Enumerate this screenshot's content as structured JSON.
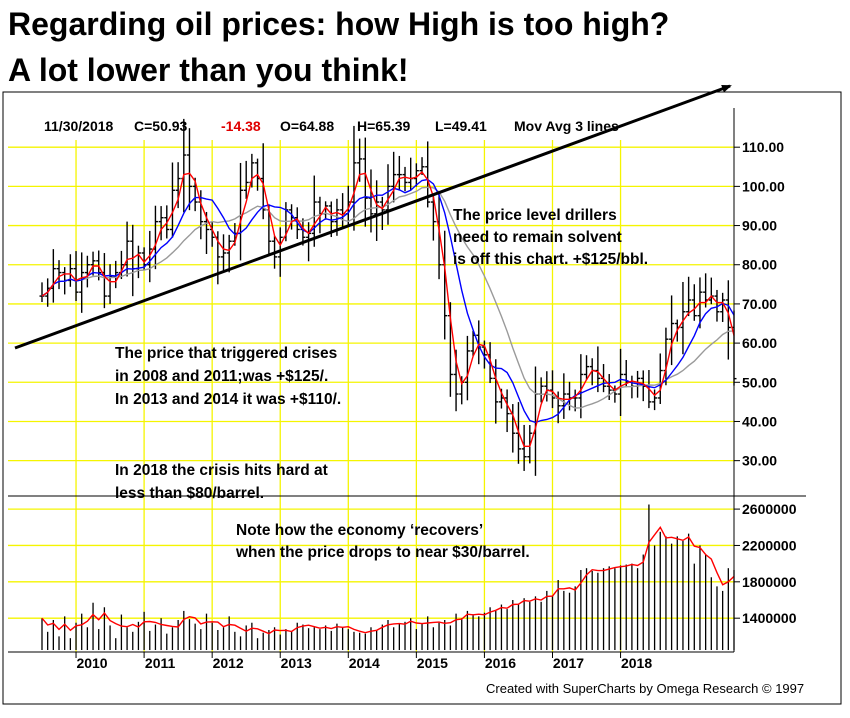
{
  "title": {
    "line1": "Regarding oil prices: how High is too high?",
    "line2": "A lot lower than you think!"
  },
  "header": {
    "date": "11/30/2018",
    "close": "C=50.93",
    "change": "-14.38",
    "open": "O=64.88",
    "high": "H=65.39",
    "low": "L=49.41",
    "indicator": "Mov Avg 3 lines"
  },
  "annotations": {
    "drillers": [
      "The price level drillers",
      "need to remain solvent",
      "is off this chart. +$125/bbl."
    ],
    "crises": [
      "The price that triggered crises",
      "in 2008 and 2011;was +$125/.",
      "In 2013 and 2014 it was +$110/."
    ],
    "crisis2018": [
      "In 2018 the crisis hits hard at",
      "less than $80/barrel."
    ],
    "recovery": [
      "Note how the economy ‘recovers’",
      "when the price drops to near $30/barrel."
    ]
  },
  "credit": "Created with SuperCharts by Omega Research © 1997",
  "colors": {
    "grid": "#f5f500",
    "price_bars": "#000000",
    "ma_fast": "#ff0000",
    "ma_mid": "#0000ff",
    "ma_slow": "#9a9a9a",
    "volume_bars": "#000000",
    "volume_avg": "#ff0000",
    "header_change": "#e00000"
  },
  "chart_data": [
    {
      "type": "ohlc",
      "title": "",
      "period": "monthly",
      "x_ticks": [
        "2010",
        "2011",
        "2012",
        "2013",
        "2014",
        "2015",
        "2016",
        "2017",
        "2018"
      ],
      "y_ticks": [
        "30.00",
        "40.00",
        "50.00",
        "60.00",
        "70.00",
        "80.00",
        "90.00",
        "100.00",
        "110.00"
      ],
      "ylim": [
        22,
        120
      ],
      "grid": true,
      "start": "2009-07",
      "close": [
        72,
        74,
        79,
        78,
        76,
        79,
        73,
        78,
        80,
        81,
        78,
        72,
        77,
        78,
        80,
        86,
        79,
        83,
        80,
        84,
        91,
        92,
        89,
        99,
        102,
        108,
        100,
        96,
        91,
        89,
        87,
        82,
        83,
        86,
        88,
        99,
        101,
        106,
        102,
        94,
        86,
        82,
        87,
        94,
        92,
        89,
        87,
        88,
        96,
        93,
        95,
        91,
        94,
        93,
        96,
        106,
        107,
        97,
        93,
        96,
        94,
        100,
        103,
        103,
        101,
        102,
        104,
        105,
        96,
        91,
        80,
        67,
        52,
        47,
        50,
        58,
        62,
        59,
        57,
        51,
        45,
        46,
        42,
        37,
        33,
        31,
        37,
        47,
        49,
        48,
        46,
        44,
        47,
        46,
        46,
        52,
        54,
        53,
        51,
        49,
        48,
        47,
        52,
        50,
        49,
        51,
        49,
        45,
        46,
        53,
        61,
        65,
        64,
        68,
        71,
        67,
        73,
        71,
        72,
        68,
        71,
        64,
        50.93
      ]
    },
    {
      "type": "line",
      "title": "",
      "series": [
        {
          "color": "ma_fast",
          "values": []
        },
        {
          "color": "ma_mid",
          "values": []
        },
        {
          "color": "ma_slow",
          "values": []
        }
      ]
    },
    {
      "type": "bar",
      "title": "",
      "y_ticks": [
        "1400000",
        "1800000",
        "2200000",
        "2600000"
      ],
      "ylim": [
        1050000,
        2700000
      ],
      "values": [
        1400000,
        1250000,
        1380000,
        1200000,
        1420000,
        1180000,
        1350000,
        1450000,
        1300000,
        1570000,
        1280000,
        1520000,
        1320000,
        1180000,
        1440000,
        1300000,
        1250000,
        1360000,
        1470000,
        1260000,
        1330000,
        1400000,
        1230000,
        1300000,
        1380000,
        1480000,
        1390000,
        1340000,
        1280000,
        1450000,
        1350000,
        1270000,
        1300000,
        1420000,
        1250000,
        1200000,
        1320000,
        1350000,
        1180000,
        1240000,
        1270000,
        1300000,
        1220000,
        1280000,
        1260000,
        1350000,
        1330000,
        1290000,
        1300000,
        1280000,
        1320000,
        1260000,
        1340000,
        1300000,
        1280000,
        1250000,
        1240000,
        1230000,
        1300000,
        1270000,
        1330000,
        1380000,
        1300000,
        1340000,
        1360000,
        1400000,
        1280000,
        1340000,
        1420000,
        1300000,
        1350000,
        1380000,
        1320000,
        1450000,
        1400000,
        1480000,
        1430000,
        1420000,
        1460000,
        1520000,
        1480000,
        1550000,
        1500000,
        1600000,
        1560000,
        1620000,
        1580000,
        1640000,
        1580000,
        1700000,
        1650000,
        1820000,
        1700000,
        1680000,
        1750000,
        1930000,
        1950000,
        1920000,
        1900000,
        1950000,
        1970000,
        1950000,
        1980000,
        1990000,
        2000000,
        1950000,
        2100000,
        2650000,
        2200000,
        2350000,
        2300000,
        2220000,
        2300000,
        2250000,
        2330000,
        2000000,
        2200000,
        2100000,
        1850000,
        1750000,
        1700000,
        1950000,
        1930000
      ]
    }
  ]
}
